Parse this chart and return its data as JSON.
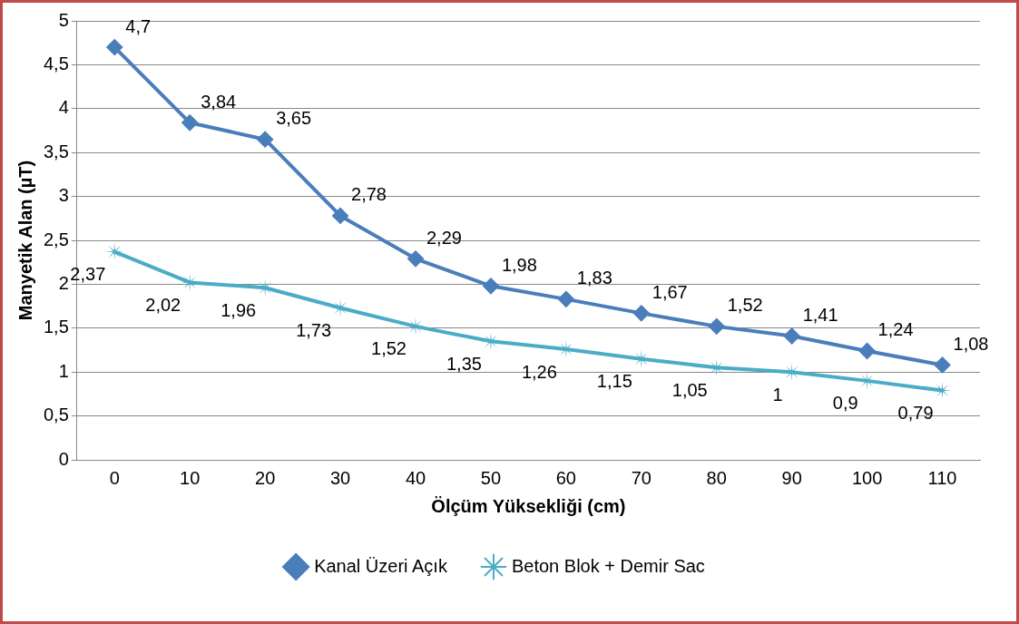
{
  "chart_data": {
    "type": "line",
    "xlabel": "Ölçüm Yüksekliği (cm)",
    "ylabel": "Manyetik Alan (µT)",
    "categories": [
      "0",
      "10",
      "20",
      "30",
      "40",
      "50",
      "60",
      "70",
      "80",
      "90",
      "100",
      "110"
    ],
    "ylim": [
      0,
      5
    ],
    "yticks": [
      0,
      {
        "value": 0.5,
        "label": "0,5"
      },
      1,
      {
        "value": 1.5,
        "label": "1,5"
      },
      2,
      {
        "value": 2.5,
        "label": "2,5"
      },
      3,
      {
        "value": 3.5,
        "label": "3,5"
      },
      4,
      {
        "value": 4.5,
        "label": "4,5"
      },
      5
    ],
    "grid": "y",
    "legend": "bottom",
    "line_style": "solid",
    "series": [
      {
        "name": "Kanal Üzeri Açık",
        "color": "#4a7ebb",
        "marker": "diamond",
        "values": [
          4.7,
          3.84,
          3.65,
          2.78,
          2.29,
          1.98,
          1.83,
          1.67,
          1.52,
          1.41,
          1.24,
          1.08
        ],
        "value_labels": [
          "4,7",
          "3,84",
          "3,65",
          "2,78",
          "2,29",
          "1,98",
          "1,83",
          "1,67",
          "1,52",
          "1,41",
          "1,24",
          "1,08"
        ]
      },
      {
        "name": "Beton Blok + Demir Sac",
        "color": "#4bacc6",
        "marker": "star",
        "values": [
          2.37,
          2.02,
          1.96,
          1.73,
          1.52,
          1.35,
          1.26,
          1.15,
          1.05,
          1,
          0.9,
          0.79
        ],
        "value_labels": [
          "2,37",
          "2,02",
          "1,96",
          "1,73",
          "1,52",
          "1,35",
          "1,26",
          "1,15",
          "1,05",
          "1",
          "0,9",
          "0,79"
        ]
      }
    ]
  }
}
